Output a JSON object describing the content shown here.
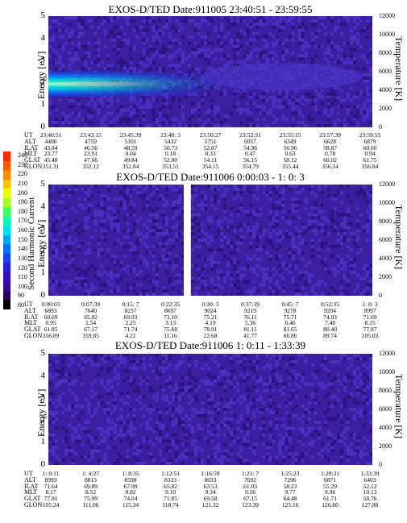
{
  "colorbar": {
    "title": "Second Harmonic Current",
    "labels": [
      "240",
      "230",
      "220",
      "210",
      "200",
      "190",
      "180",
      "170",
      "160",
      "150",
      "140",
      "130",
      "120",
      "110",
      "100",
      "90",
      "80"
    ],
    "colors": [
      "#ff2a00",
      "#ff5a00",
      "#ff8c00",
      "#ffc000",
      "#f0ff00",
      "#a0ff20",
      "#40ff60",
      "#00ffb0",
      "#00e0f0",
      "#00a8ff",
      "#0070ff",
      "#1040ff",
      "#2020e0",
      "#3010c0",
      "#3a0898",
      "#2a0060",
      "#000000"
    ]
  },
  "chart_data": [
    {
      "type": "heatmap",
      "title": "EXOS-D/TED   Date:911005  23:40:51 - 23:59:55",
      "ylabel": "Energy [eV]",
      "y2label": "Temperature [K]",
      "yticks": [
        "0",
        "1",
        "2",
        "3",
        "4",
        "5"
      ],
      "ylim": [
        0,
        5
      ],
      "y2ticks": [
        "0",
        "2000",
        "4000",
        "6000",
        "8000",
        "10000",
        "12000"
      ],
      "y2lim": [
        0,
        12000
      ],
      "band": {
        "center_ev": 1.95,
        "half_width_ev": 0.55,
        "fade_out_fraction": 0.55
      },
      "gap": null,
      "table": {
        "rows": [
          "UT",
          "ALT",
          "ILAT",
          "MLT",
          "GLAT",
          "GLON"
        ],
        "cols": [
          [
            "23:40:51",
            "4406",
            "43.84",
            "23.77",
            "45.48",
            "351.31"
          ],
          [
            "23:43:15",
            "4759",
            "46.56",
            "23.91",
            "47.66",
            "352.12"
          ],
          [
            "23:45:39",
            "5101",
            "48.59",
            "0.04",
            "49.84",
            "352.84"
          ],
          [
            "23:48: 3",
            "5432",
            "50.73",
            "0.18",
            "52.00",
            "353.51"
          ],
          [
            "23:50:27",
            "5751",
            "52.87",
            "0.33",
            "54.11",
            "354.15"
          ],
          [
            "23:52:51",
            "6057",
            "54.96",
            "0.47",
            "56.15",
            "354.79"
          ],
          [
            "23:55:15",
            "6349",
            "56.96",
            "0.63",
            "58.12",
            "355.44"
          ],
          [
            "23:57:39",
            "6628",
            "58.87",
            "0.78",
            "60.02",
            "356.14"
          ],
          [
            "23:59:55",
            "6879",
            "60.60",
            "0.94",
            "61.75",
            "356.84"
          ]
        ]
      }
    },
    {
      "type": "heatmap",
      "title": "EXOS-D/TED   Date:911006  0:00:03 - 1: 0: 3",
      "ylabel": "Energy [eV]",
      "y2label": "Temperature [K]",
      "yticks": [
        "0",
        "1",
        "2",
        "3",
        "4",
        "5"
      ],
      "ylim": [
        0,
        5
      ],
      "y2ticks": [
        "0",
        "2000",
        "4000",
        "6000",
        "8000",
        "10000",
        "12000"
      ],
      "y2lim": [
        0,
        12000
      ],
      "band": null,
      "gap": {
        "start_fraction": 0.418,
        "end_fraction": 0.44
      },
      "table": {
        "rows": [
          "UT",
          "ALT",
          "ILAT",
          "MLT",
          "GLAT",
          "GLON"
        ],
        "cols": [
          [
            "0:00:03",
            "6893",
            "60.69",
            "0.95",
            "61.85",
            "356.89"
          ],
          [
            "0:07:39",
            "7640",
            "65.82",
            "1.54",
            "67.17",
            "359.85"
          ],
          [
            "0:15: 7",
            "8237",
            "69.93",
            "2.25",
            "71.74",
            "4.21"
          ],
          [
            "0:22:35",
            "8697",
            "73.10",
            "3.13",
            "75.68",
            "11.16"
          ],
          [
            "0:30: 3",
            "9024",
            "75.21",
            "4.19",
            "78.91",
            "22.68"
          ],
          [
            "0:37:39",
            "9219",
            "76.11",
            "5.36",
            "81.11",
            "41.77"
          ],
          [
            "0:45: 7",
            "9278",
            "75.71",
            "6.46",
            "81.65",
            "66.86"
          ],
          [
            "0:52:35",
            "9204",
            "74.03",
            "7.40",
            "80.40",
            "89.74"
          ],
          [
            "1: 0: 3",
            "8997",
            "71.69",
            "8.15",
            "77.87",
            "105.03"
          ]
        ]
      }
    },
    {
      "type": "heatmap",
      "title": "EXOS-D/TED   Date:911006  1: 0:11 - 1:33:39",
      "ylabel": "Energy [eV]",
      "y2label": "Temperature [K]",
      "yticks": [
        "0",
        "1",
        "2",
        "3",
        "4",
        "5"
      ],
      "ylim": [
        0,
        5
      ],
      "y2ticks": [
        "0",
        "2000",
        "4000",
        "6000",
        "8000",
        "10000",
        "12000"
      ],
      "y2lim": [
        0,
        12000
      ],
      "band": null,
      "gap": null,
      "table": {
        "rows": [
          "UT",
          "ALT",
          "ILAT",
          "MLT",
          "GLAT",
          "GLON"
        ],
        "cols": [
          [
            "1: 0:11",
            "8993",
            "71.64",
            "8.17",
            "77.81",
            "105.24"
          ],
          [
            "1: 4:27",
            "8813",
            "69.89",
            "8.52",
            "75.99",
            "111.06"
          ],
          [
            "1: 8:35",
            "8598",
            "67.99",
            "8.82",
            "74.04",
            "115.34"
          ],
          [
            "1:12:51",
            "8333",
            "65.82",
            "9.10",
            "71.85",
            "118.74"
          ],
          [
            "1:16:59",
            "8033",
            "63.53",
            "9.34",
            "69.58",
            "121.32"
          ],
          [
            "1:21: 7",
            "7692",
            "61.03",
            "9.56",
            "67.15",
            "123.39"
          ],
          [
            "1:25:23",
            "7296",
            "58.23",
            "9.77",
            "64.48",
            "125.16"
          ],
          [
            "1:29:31",
            "6871",
            "55.29",
            "9.96",
            "61.71",
            "126.60"
          ],
          [
            "1:33:39",
            "6403",
            "52.12",
            "10.13",
            "58.76",
            "127.88"
          ]
        ]
      }
    }
  ]
}
